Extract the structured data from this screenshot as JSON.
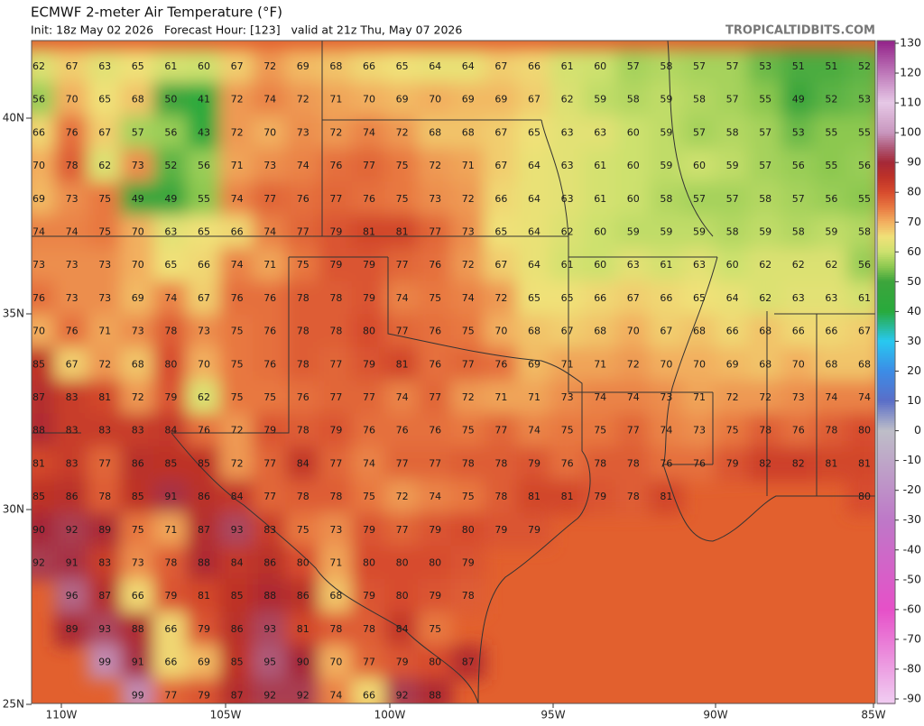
{
  "header": {
    "title": "ECMWF 2-meter Air Temperature (°F)",
    "subtitle": "Init: 18z May 02 2026   Forecast Hour: [123]   valid at 21z Thu, May 07 2026",
    "source": "TROPICALTIDBITS.COM"
  },
  "map": {
    "lat_labels": [
      "40N",
      "35N",
      "30N",
      "25N"
    ],
    "lon_labels": [
      "110W",
      "105W",
      "100W",
      "95W",
      "90W",
      "85W"
    ],
    "grid": {
      "rows": [
        [
          62,
          67,
          63,
          65,
          61,
          60,
          67,
          72,
          69,
          68,
          66,
          65,
          64,
          64,
          67,
          66,
          61,
          60,
          57,
          58,
          57,
          57,
          53,
          51,
          51,
          52
        ],
        [
          56,
          70,
          65,
          68,
          50,
          41,
          72,
          74,
          72,
          71,
          70,
          69,
          70,
          69,
          69,
          67,
          62,
          59,
          58,
          59,
          58,
          57,
          55,
          49,
          52,
          53
        ],
        [
          66,
          76,
          67,
          57,
          56,
          43,
          72,
          70,
          73,
          72,
          74,
          72,
          68,
          68,
          67,
          65,
          63,
          63,
          60,
          59,
          57,
          58,
          57,
          53,
          55,
          55
        ],
        [
          70,
          78,
          62,
          73,
          52,
          56,
          71,
          73,
          74,
          76,
          77,
          75,
          72,
          71,
          67,
          64,
          63,
          61,
          60,
          59,
          60,
          59,
          57,
          56,
          55,
          56
        ],
        [
          69,
          73,
          75,
          49,
          49,
          55,
          74,
          77,
          76,
          77,
          76,
          75,
          73,
          72,
          66,
          64,
          63,
          61,
          60,
          58,
          57,
          57,
          58,
          57,
          56,
          55
        ],
        [
          74,
          74,
          75,
          70,
          63,
          65,
          66,
          74,
          77,
          79,
          81,
          81,
          77,
          73,
          65,
          64,
          62,
          60,
          59,
          59,
          59,
          58,
          59,
          58,
          59,
          58
        ],
        [
          73,
          73,
          73,
          70,
          65,
          66,
          74,
          71,
          75,
          79,
          79,
          77,
          76,
          72,
          67,
          64,
          61,
          60,
          63,
          61,
          63,
          60,
          62,
          62,
          62,
          56
        ],
        [
          76,
          73,
          73,
          69,
          74,
          67,
          76,
          76,
          78,
          78,
          79,
          74,
          75,
          74,
          72,
          65,
          65,
          66,
          67,
          66,
          65,
          64,
          62,
          63,
          63,
          61
        ],
        [
          70,
          76,
          71,
          73,
          78,
          73,
          75,
          76,
          78,
          78,
          80,
          77,
          76,
          75,
          70,
          68,
          67,
          68,
          70,
          67,
          68,
          66,
          68,
          66,
          66,
          67
        ],
        [
          85,
          67,
          72,
          68,
          80,
          70,
          75,
          76,
          78,
          77,
          79,
          81,
          76,
          77,
          76,
          69,
          71,
          71,
          72,
          70,
          70,
          69,
          68,
          70,
          68,
          68
        ],
        [
          87,
          83,
          81,
          72,
          79,
          62,
          75,
          75,
          76,
          77,
          77,
          74,
          77,
          72,
          71,
          71,
          73,
          74,
          74,
          73,
          71,
          72,
          72,
          73,
          74,
          74
        ],
        [
          88,
          83,
          83,
          83,
          84,
          76,
          72,
          79,
          78,
          79,
          76,
          76,
          76,
          75,
          77,
          74,
          75,
          75,
          77,
          74,
          73,
          75,
          78,
          76,
          78,
          80
        ],
        [
          81,
          83,
          77,
          86,
          85,
          85,
          72,
          77,
          84,
          77,
          74,
          77,
          77,
          78,
          78,
          79,
          76,
          78,
          78,
          76,
          76,
          79,
          82,
          82,
          81,
          81
        ],
        [
          85,
          86,
          78,
          85,
          91,
          86,
          84,
          77,
          78,
          78,
          75,
          72,
          74,
          75,
          78,
          81,
          81,
          79,
          78,
          81,
          null,
          null,
          null,
          null,
          null,
          80
        ],
        [
          90,
          92,
          89,
          75,
          71,
          87,
          93,
          83,
          75,
          73,
          79,
          77,
          79,
          80,
          79,
          79,
          null,
          null,
          null,
          null,
          null,
          null,
          null,
          null,
          null,
          null
        ],
        [
          92,
          91,
          83,
          73,
          78,
          88,
          84,
          86,
          80,
          71,
          80,
          80,
          80,
          79,
          null,
          null,
          null,
          null,
          null,
          null,
          null,
          null,
          null,
          null,
          null,
          null
        ],
        [
          null,
          96,
          87,
          66,
          79,
          81,
          85,
          88,
          86,
          68,
          79,
          80,
          79,
          78,
          null,
          null,
          null,
          null,
          null,
          null,
          null,
          null,
          null,
          null,
          null,
          null
        ],
        [
          null,
          89,
          93,
          88,
          66,
          79,
          86,
          93,
          81,
          78,
          78,
          84,
          75,
          null,
          null,
          null,
          null,
          null,
          null,
          null,
          null,
          null,
          null,
          null,
          null,
          null
        ],
        [
          null,
          null,
          99,
          91,
          66,
          69,
          85,
          95,
          90,
          70,
          77,
          79,
          80,
          87,
          null,
          null,
          null,
          null,
          null,
          null,
          null,
          null,
          null,
          null,
          null,
          null
        ],
        [
          null,
          null,
          null,
          99,
          77,
          79,
          87,
          92,
          92,
          74,
          66,
          92,
          88,
          null,
          null,
          null,
          null,
          null,
          null,
          null,
          null,
          null,
          null,
          null,
          null,
          null
        ]
      ]
    }
  },
  "colorbar": {
    "ticks": [
      130,
      120,
      110,
      100,
      90,
      80,
      70,
      60,
      50,
      40,
      30,
      20,
      10,
      0,
      -10,
      -20,
      -30,
      -40,
      -50,
      -60,
      -70,
      -80,
      -90
    ]
  }
}
